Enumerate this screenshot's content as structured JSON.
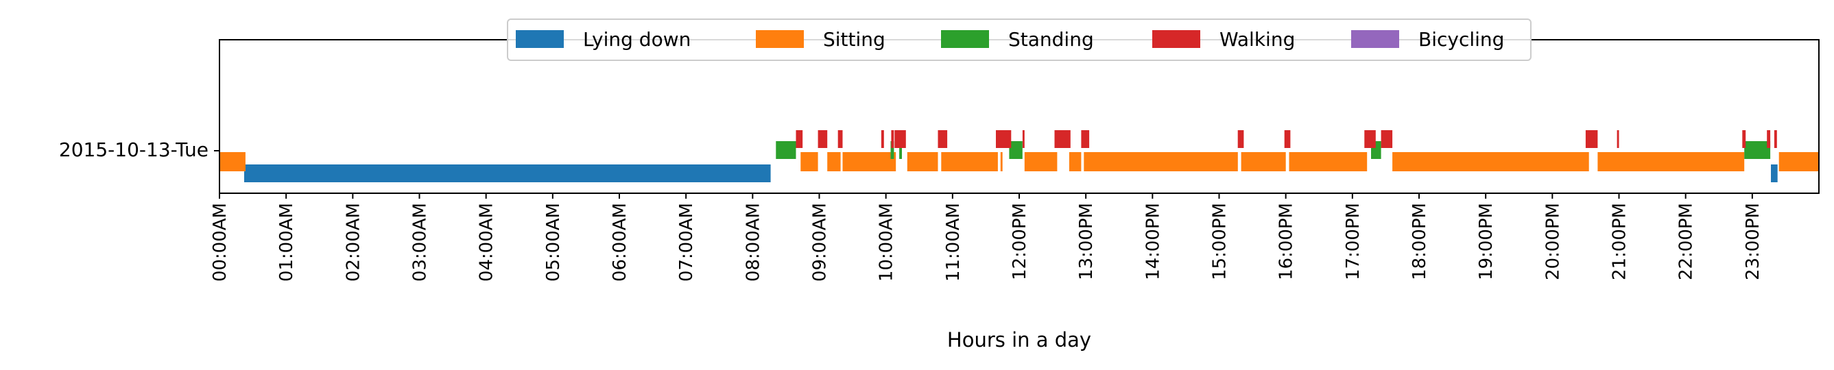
{
  "chart_data": {
    "type": "bar",
    "subtype": "activity-timeline",
    "xlabel": "Hours in a day",
    "ylabel": "",
    "xlim": [
      0,
      24
    ],
    "row_label": "2015-10-13-Tue",
    "legend_position": "top-center",
    "grid": false,
    "x_tick_labels": [
      "00:00AM",
      "01:00AM",
      "02:00AM",
      "03:00AM",
      "04:00AM",
      "05:00AM",
      "06:00AM",
      "07:00AM",
      "08:00AM",
      "09:00AM",
      "10:00AM",
      "11:00AM",
      "12:00PM",
      "13:00PM",
      "14:00PM",
      "15:00PM",
      "16:00PM",
      "17:00PM",
      "18:00PM",
      "19:00PM",
      "20:00PM",
      "21:00PM",
      "22:00PM",
      "23:00PM"
    ],
    "series": [
      {
        "name": "Lying down",
        "color": "#1f77b4",
        "intervals": [
          [
            0.37,
            8.27
          ],
          [
            23.28,
            23.38
          ]
        ]
      },
      {
        "name": "Sitting",
        "color": "#ff7f0e",
        "intervals": [
          [
            0.0,
            0.39
          ],
          [
            8.72,
            8.98
          ],
          [
            9.12,
            9.32
          ],
          [
            9.35,
            10.15
          ],
          [
            10.32,
            10.78
          ],
          [
            10.83,
            11.68
          ],
          [
            11.72,
            11.75
          ],
          [
            12.08,
            12.57
          ],
          [
            12.75,
            12.93
          ],
          [
            12.97,
            15.28
          ],
          [
            15.33,
            16.0
          ],
          [
            16.05,
            17.22
          ],
          [
            17.6,
            20.55
          ],
          [
            20.68,
            22.88
          ],
          [
            23.4,
            24.0
          ]
        ]
      },
      {
        "name": "Standing",
        "color": "#2ca02c",
        "intervals": [
          [
            8.35,
            8.65
          ],
          [
            10.07,
            10.12
          ],
          [
            10.2,
            10.24
          ],
          [
            11.85,
            12.05
          ],
          [
            17.28,
            17.43
          ],
          [
            22.88,
            23.27
          ]
        ]
      },
      {
        "name": "Walking",
        "color": "#d62728",
        "intervals": [
          [
            8.65,
            8.75
          ],
          [
            8.98,
            9.12
          ],
          [
            9.28,
            9.35
          ],
          [
            9.93,
            9.97
          ],
          [
            10.08,
            10.12
          ],
          [
            10.13,
            10.3
          ],
          [
            10.78,
            10.92
          ],
          [
            11.65,
            11.88
          ],
          [
            12.05,
            12.08
          ],
          [
            12.53,
            12.77
          ],
          [
            12.93,
            13.05
          ],
          [
            15.28,
            15.37
          ],
          [
            15.98,
            16.07
          ],
          [
            17.18,
            17.35
          ],
          [
            17.43,
            17.6
          ],
          [
            20.5,
            20.68
          ],
          [
            20.97,
            21.0
          ],
          [
            22.85,
            22.9
          ],
          [
            23.22,
            23.27
          ],
          [
            23.33,
            23.37
          ]
        ]
      },
      {
        "name": "Bicycling",
        "color": "#9467bd",
        "intervals": []
      }
    ]
  }
}
